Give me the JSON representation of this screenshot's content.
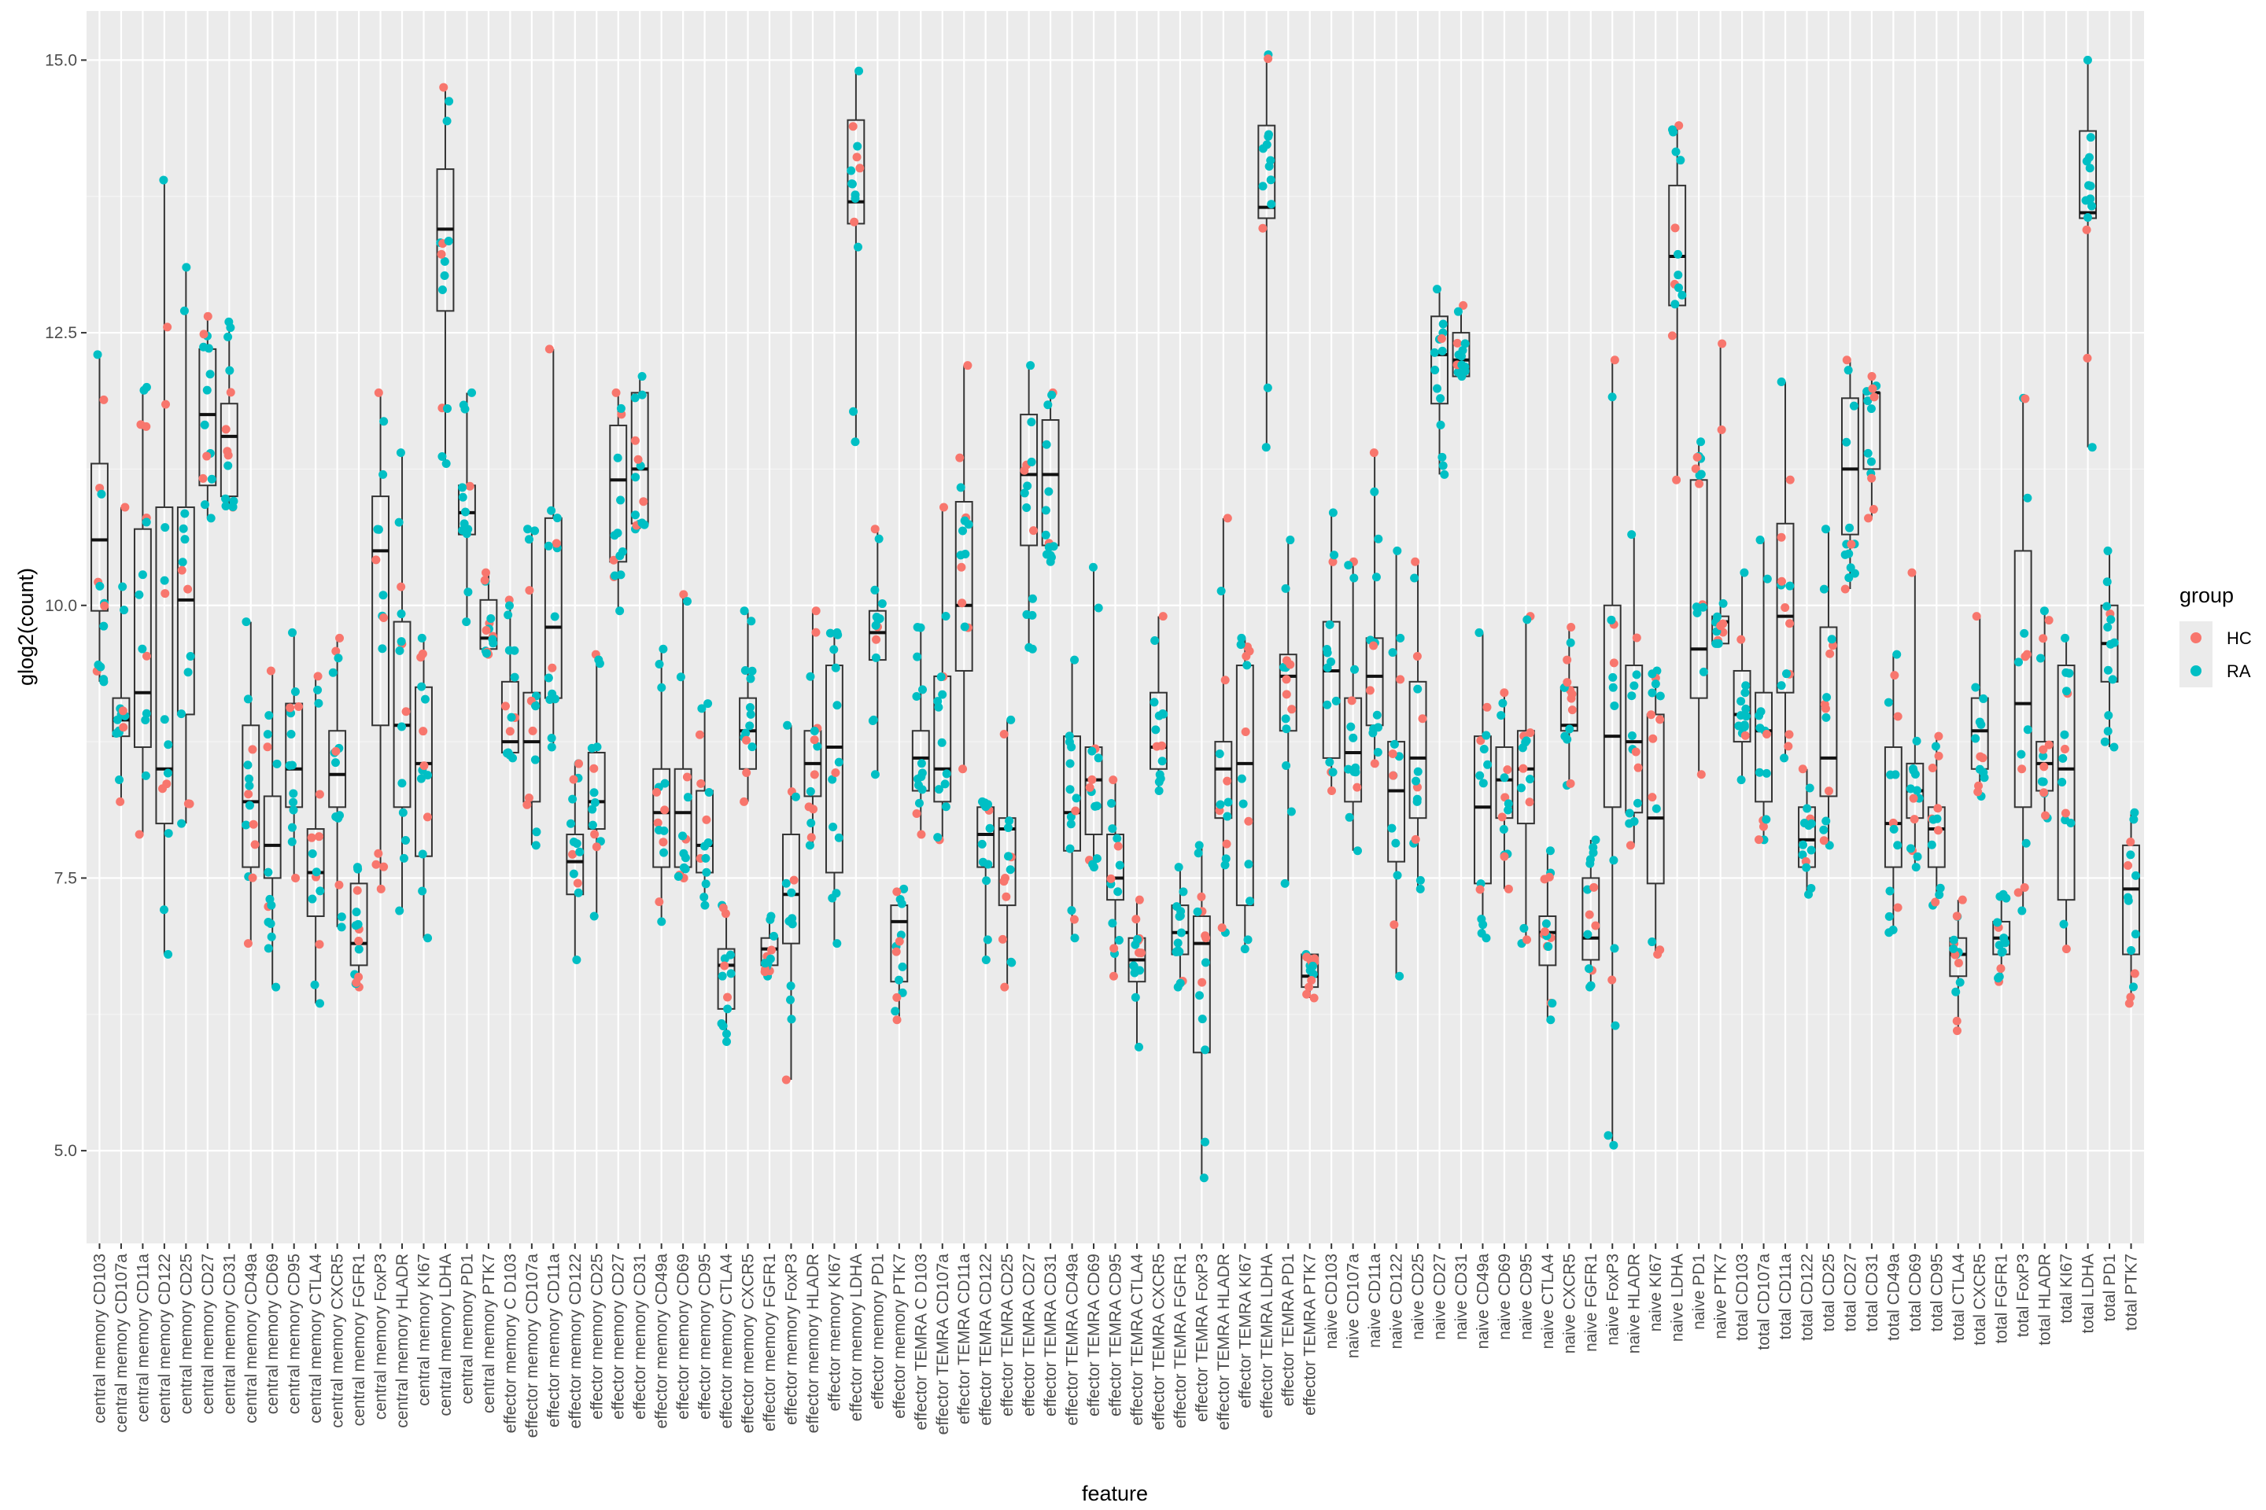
{
  "chart_data": {
    "type": "box+jitter",
    "xlabel": "feature",
    "ylabel": "glog2(count)",
    "ylim": [
      4.15,
      15.45
    ],
    "yticks": [
      5.0,
      7.5,
      10.0,
      12.5,
      15.0
    ],
    "ytick_labels": [
      "5.0",
      "7.5",
      "10.0",
      "12.5",
      "15.0"
    ],
    "grid": true,
    "legend": {
      "title": "group",
      "position": "right",
      "entries": [
        {
          "label": "HC",
          "color": "#F8766D"
        },
        {
          "label": "RA",
          "color": "#00BFC4"
        }
      ]
    },
    "categories": [
      "central memory CD103",
      "central memory CD107a",
      "central memory CD11a",
      "central memory CD122",
      "central memory CD25",
      "central memory CD27",
      "central memory CD31",
      "central memory CD49a",
      "central memory CD69",
      "central memory CD95",
      "central memory CTLA4",
      "central memory CXCR5",
      "central memory FGFR1",
      "central memory FoxP3",
      "central memory HLADR",
      "central memory KI67",
      "central memory LDHA",
      "central memory PD1",
      "central memory PTK7",
      "effector memory C D103",
      "effector memory CD107a",
      "effector memory CD11a",
      "effector memory CD122",
      "effector memory CD25",
      "effector memory CD27",
      "effector memory CD31",
      "effector memory CD49a",
      "effector memory CD69",
      "effector memory CD95",
      "effector memory CTLA4",
      "effector memory CXCR5",
      "effector memory FGFR1",
      "effector memory FoxP3",
      "effector memory HLADR",
      "effector memory KI67",
      "effector memory LDHA",
      "effector memory PD1",
      "effector memory PTK7",
      "effector TEMRA C D103",
      "effector TEMRA CD107a",
      "effector TEMRA CD11a",
      "effector TEMRA CD122",
      "effector TEMRA CD25",
      "effector TEMRA CD27",
      "effector TEMRA CD31",
      "effector TEMRA CD49a",
      "effector TEMRA CD69",
      "effector TEMRA CD95",
      "effector TEMRA CTLA4",
      "effector TEMRA CXCR5",
      "effector TEMRA FGFR1",
      "effector TEMRA FoxP3",
      "effector TEMRA HLADR",
      "effector TEMRA KI67",
      "effector TEMRA LDHA",
      "effector TEMRA PD1",
      "effector TEMRA PTK7",
      "naive CD103",
      "naive CD107a",
      "naive CD11a",
      "naive CD122",
      "naive CD25",
      "naive CD27",
      "naive CD31",
      "naive CD49a",
      "naive CD69",
      "naive CD95",
      "naive CTLA4",
      "naive CXCR5",
      "naive FGFR1",
      "naive FoxP3",
      "naive HLADR",
      "naive KI67",
      "naive LDHA",
      "naive PD1",
      "naive PTK7",
      "total CD103",
      "total CD107a",
      "total CD11a",
      "total CD122",
      "total CD25",
      "total CD27",
      "total CD31",
      "total CD49a",
      "total CD69",
      "total CD95",
      "total CTLA4",
      "total CXCR5",
      "total FGFR1",
      "total FoxP3",
      "total HLADR",
      "total KI67",
      "total LDHA",
      "total PD1",
      "total PTK7"
    ],
    "boxes": [
      {
        "min": 9.3,
        "q1": 9.95,
        "median": 10.6,
        "q3": 11.3,
        "max": 12.3
      },
      {
        "min": 8.2,
        "q1": 8.8,
        "median": 8.95,
        "q3": 9.15,
        "max": 10.9
      },
      {
        "min": 7.9,
        "q1": 8.7,
        "median": 9.2,
        "q3": 10.7,
        "max": 12.0
      },
      {
        "min": 6.8,
        "q1": 8.0,
        "median": 8.5,
        "q3": 10.9,
        "max": 13.9
      },
      {
        "min": 8.0,
        "q1": 9.0,
        "median": 10.05,
        "q3": 10.9,
        "max": 13.1
      },
      {
        "min": 10.8,
        "q1": 11.1,
        "median": 11.75,
        "q3": 12.35,
        "max": 12.65
      },
      {
        "min": 10.9,
        "q1": 11.0,
        "median": 11.55,
        "q3": 11.85,
        "max": 12.6
      },
      {
        "min": 6.9,
        "q1": 7.6,
        "median": 8.2,
        "q3": 8.9,
        "max": 9.85
      },
      {
        "min": 6.5,
        "q1": 7.5,
        "median": 7.8,
        "q3": 8.25,
        "max": 9.4
      },
      {
        "min": 7.5,
        "q1": 8.15,
        "median": 8.5,
        "q3": 9.1,
        "max": 9.75
      },
      {
        "min": 6.35,
        "q1": 7.15,
        "median": 7.55,
        "q3": 7.95,
        "max": 9.35
      },
      {
        "min": 7.05,
        "q1": 8.15,
        "median": 8.45,
        "q3": 8.85,
        "max": 9.7
      },
      {
        "min": 6.5,
        "q1": 6.7,
        "median": 6.9,
        "q3": 7.45,
        "max": 7.6
      },
      {
        "min": 7.4,
        "q1": 8.9,
        "median": 10.5,
        "q3": 11.0,
        "max": 11.95
      },
      {
        "min": 7.2,
        "q1": 8.15,
        "median": 8.9,
        "q3": 9.85,
        "max": 11.4
      },
      {
        "min": 6.95,
        "q1": 7.7,
        "median": 8.55,
        "q3": 9.25,
        "max": 9.7
      },
      {
        "min": 11.3,
        "q1": 12.7,
        "median": 13.45,
        "q3": 14.0,
        "max": 14.75
      },
      {
        "min": 9.85,
        "q1": 10.65,
        "median": 10.85,
        "q3": 11.1,
        "max": 11.95
      },
      {
        "min": 9.55,
        "q1": 9.6,
        "median": 9.7,
        "q3": 10.05,
        "max": 10.3
      },
      {
        "min": 8.6,
        "q1": 8.65,
        "median": 8.75,
        "q3": 9.3,
        "max": 10.05
      },
      {
        "min": 7.8,
        "q1": 8.2,
        "median": 8.75,
        "q3": 9.2,
        "max": 10.7
      },
      {
        "min": 8.7,
        "q1": 9.15,
        "median": 9.8,
        "q3": 10.8,
        "max": 12.35
      },
      {
        "min": 6.75,
        "q1": 7.35,
        "median": 7.65,
        "q3": 7.9,
        "max": 8.55
      },
      {
        "min": 7.15,
        "q1": 7.95,
        "median": 8.2,
        "q3": 8.65,
        "max": 9.55
      },
      {
        "min": 9.95,
        "q1": 10.4,
        "median": 11.15,
        "q3": 11.65,
        "max": 11.95
      },
      {
        "min": 10.7,
        "q1": 10.75,
        "median": 11.25,
        "q3": 11.95,
        "max": 12.1
      },
      {
        "min": 7.1,
        "q1": 7.6,
        "median": 8.1,
        "q3": 8.5,
        "max": 9.6
      },
      {
        "min": 7.5,
        "q1": 7.6,
        "median": 8.1,
        "q3": 8.5,
        "max": 10.1
      },
      {
        "min": 7.25,
        "q1": 7.55,
        "median": 7.8,
        "q3": 8.3,
        "max": 9.1
      },
      {
        "min": 6.0,
        "q1": 6.3,
        "median": 6.7,
        "q3": 6.85,
        "max": 7.25
      },
      {
        "min": 8.2,
        "q1": 8.5,
        "median": 8.85,
        "q3": 9.15,
        "max": 9.95
      },
      {
        "min": 6.6,
        "q1": 6.7,
        "median": 6.85,
        "q3": 6.95,
        "max": 7.15
      },
      {
        "min": 5.65,
        "q1": 6.9,
        "median": 7.35,
        "q3": 7.9,
        "max": 8.9
      },
      {
        "min": 7.8,
        "q1": 8.25,
        "median": 8.55,
        "q3": 8.85,
        "max": 9.95
      },
      {
        "min": 6.9,
        "q1": 7.55,
        "median": 8.7,
        "q3": 9.45,
        "max": 9.75
      },
      {
        "min": 11.5,
        "q1": 13.5,
        "median": 13.7,
        "q3": 14.45,
        "max": 14.9
      },
      {
        "min": 8.45,
        "q1": 9.5,
        "median": 9.75,
        "q3": 9.95,
        "max": 10.7
      },
      {
        "min": 6.2,
        "q1": 6.55,
        "median": 7.1,
        "q3": 7.25,
        "max": 7.4
      },
      {
        "min": 7.9,
        "q1": 8.3,
        "median": 8.6,
        "q3": 8.85,
        "max": 9.8
      },
      {
        "min": 7.85,
        "q1": 8.2,
        "median": 8.5,
        "q3": 9.35,
        "max": 10.9
      },
      {
        "min": 8.5,
        "q1": 9.4,
        "median": 10.0,
        "q3": 10.95,
        "max": 12.2
      },
      {
        "min": 6.75,
        "q1": 7.6,
        "median": 7.9,
        "q3": 8.15,
        "max": 8.2
      },
      {
        "min": 6.5,
        "q1": 7.25,
        "median": 7.95,
        "q3": 8.05,
        "max": 8.95
      },
      {
        "min": 9.6,
        "q1": 10.55,
        "median": 11.2,
        "q3": 11.75,
        "max": 12.2
      },
      {
        "min": 10.4,
        "q1": 10.55,
        "median": 11.2,
        "q3": 11.7,
        "max": 11.95
      },
      {
        "min": 6.95,
        "q1": 7.75,
        "median": 8.1,
        "q3": 8.8,
        "max": 9.5
      },
      {
        "min": 7.6,
        "q1": 7.9,
        "median": 8.4,
        "q3": 8.7,
        "max": 10.35
      },
      {
        "min": 6.6,
        "q1": 7.3,
        "median": 7.5,
        "q3": 7.9,
        "max": 8.4
      },
      {
        "min": 5.95,
        "q1": 6.55,
        "median": 6.75,
        "q3": 6.95,
        "max": 7.3
      },
      {
        "min": 8.3,
        "q1": 8.5,
        "median": 8.7,
        "q3": 9.2,
        "max": 9.9
      },
      {
        "min": 6.5,
        "q1": 6.8,
        "median": 7.0,
        "q3": 7.25,
        "max": 7.6
      },
      {
        "min": 4.75,
        "q1": 5.9,
        "median": 6.9,
        "q3": 7.15,
        "max": 7.8
      },
      {
        "min": 7.0,
        "q1": 8.05,
        "median": 8.5,
        "q3": 8.75,
        "max": 10.8
      },
      {
        "min": 6.85,
        "q1": 7.25,
        "median": 8.55,
        "q3": 9.45,
        "max": 9.7
      },
      {
        "min": 11.45,
        "q1": 13.55,
        "median": 13.65,
        "q3": 14.4,
        "max": 15.05
      },
      {
        "min": 7.45,
        "q1": 8.85,
        "median": 9.35,
        "q3": 9.55,
        "max": 10.6
      },
      {
        "min": 6.4,
        "q1": 6.5,
        "median": 6.6,
        "q3": 6.8,
        "max": 6.8
      },
      {
        "min": 8.3,
        "q1": 8.6,
        "median": 9.4,
        "q3": 9.85,
        "max": 10.85
      },
      {
        "min": 7.75,
        "q1": 8.2,
        "median": 8.65,
        "q3": 9.15,
        "max": 10.4
      },
      {
        "min": 8.55,
        "q1": 8.9,
        "median": 9.35,
        "q3": 9.7,
        "max": 11.4
      },
      {
        "min": 6.6,
        "q1": 7.65,
        "median": 8.3,
        "q3": 8.75,
        "max": 10.5
      },
      {
        "min": 7.4,
        "q1": 8.05,
        "median": 8.6,
        "q3": 9.3,
        "max": 10.4
      },
      {
        "min": 11.2,
        "q1": 11.85,
        "median": 12.3,
        "q3": 12.65,
        "max": 12.9
      },
      {
        "min": 12.1,
        "q1": 12.1,
        "median": 12.25,
        "q3": 12.5,
        "max": 12.75
      },
      {
        "min": 6.95,
        "q1": 7.45,
        "median": 8.15,
        "q3": 8.8,
        "max": 9.75
      },
      {
        "min": 7.4,
        "q1": 8.05,
        "median": 8.4,
        "q3": 8.7,
        "max": 9.2
      },
      {
        "min": 6.9,
        "q1": 8.0,
        "median": 8.5,
        "q3": 8.85,
        "max": 9.9
      },
      {
        "min": 6.2,
        "q1": 6.7,
        "median": 7.0,
        "q3": 7.15,
        "max": 7.75
      },
      {
        "min": 8.35,
        "q1": 8.85,
        "median": 8.9,
        "q3": 9.25,
        "max": 9.8
      },
      {
        "min": 6.5,
        "q1": 6.75,
        "median": 6.95,
        "q3": 7.5,
        "max": 7.85
      },
      {
        "min": 5.05,
        "q1": 8.15,
        "median": 8.8,
        "q3": 10.0,
        "max": 12.25
      },
      {
        "min": 7.8,
        "q1": 8.1,
        "median": 8.75,
        "q3": 9.45,
        "max": 10.65
      },
      {
        "min": 6.8,
        "q1": 7.45,
        "median": 8.05,
        "q3": 9.0,
        "max": 9.4
      },
      {
        "min": 11.15,
        "q1": 12.75,
        "median": 13.2,
        "q3": 13.85,
        "max": 14.4
      },
      {
        "min": 8.45,
        "q1": 9.15,
        "median": 9.6,
        "q3": 11.15,
        "max": 11.5
      },
      {
        "min": 9.65,
        "q1": 9.65,
        "median": 9.85,
        "q3": 9.9,
        "max": 12.4
      },
      {
        "min": 8.4,
        "q1": 8.75,
        "median": 9.0,
        "q3": 9.4,
        "max": 10.3
      },
      {
        "min": 7.85,
        "q1": 8.2,
        "median": 8.85,
        "q3": 9.2,
        "max": 10.6
      },
      {
        "min": 8.6,
        "q1": 9.2,
        "median": 9.9,
        "q3": 10.75,
        "max": 12.05
      },
      {
        "min": 7.35,
        "q1": 7.6,
        "median": 7.85,
        "q3": 8.15,
        "max": 8.5
      },
      {
        "min": 7.8,
        "q1": 8.25,
        "median": 8.6,
        "q3": 9.8,
        "max": 10.7
      },
      {
        "min": 10.15,
        "q1": 10.65,
        "median": 11.25,
        "q3": 11.9,
        "max": 12.25
      },
      {
        "min": 10.8,
        "q1": 11.25,
        "median": 11.95,
        "q3": 11.95,
        "max": 12.1
      },
      {
        "min": 7.0,
        "q1": 7.6,
        "median": 8.0,
        "q3": 8.7,
        "max": 9.55
      },
      {
        "min": 7.6,
        "q1": 8.05,
        "median": 8.3,
        "q3": 8.55,
        "max": 10.3
      },
      {
        "min": 7.25,
        "q1": 7.6,
        "median": 7.95,
        "q3": 8.15,
        "max": 8.8
      },
      {
        "min": 6.1,
        "q1": 6.6,
        "median": 6.8,
        "q3": 6.95,
        "max": 7.3
      },
      {
        "min": 8.25,
        "q1": 8.5,
        "median": 8.85,
        "q3": 9.15,
        "max": 9.9
      },
      {
        "min": 6.55,
        "q1": 6.8,
        "median": 6.95,
        "q3": 7.1,
        "max": 7.35
      },
      {
        "min": 7.2,
        "q1": 8.15,
        "median": 9.1,
        "q3": 10.5,
        "max": 11.9
      },
      {
        "min": 8.05,
        "q1": 8.3,
        "median": 8.55,
        "q3": 8.75,
        "max": 9.95
      },
      {
        "min": 6.85,
        "q1": 7.3,
        "median": 8.5,
        "q3": 9.45,
        "max": 9.7
      },
      {
        "min": 11.45,
        "q1": 13.55,
        "median": 13.6,
        "q3": 14.35,
        "max": 15.0
      },
      {
        "min": 8.7,
        "q1": 9.3,
        "median": 9.65,
        "q3": 10.0,
        "max": 10.5
      },
      {
        "min": 6.35,
        "q1": 6.8,
        "median": 7.4,
        "q3": 7.8,
        "max": 8.1
      }
    ]
  }
}
